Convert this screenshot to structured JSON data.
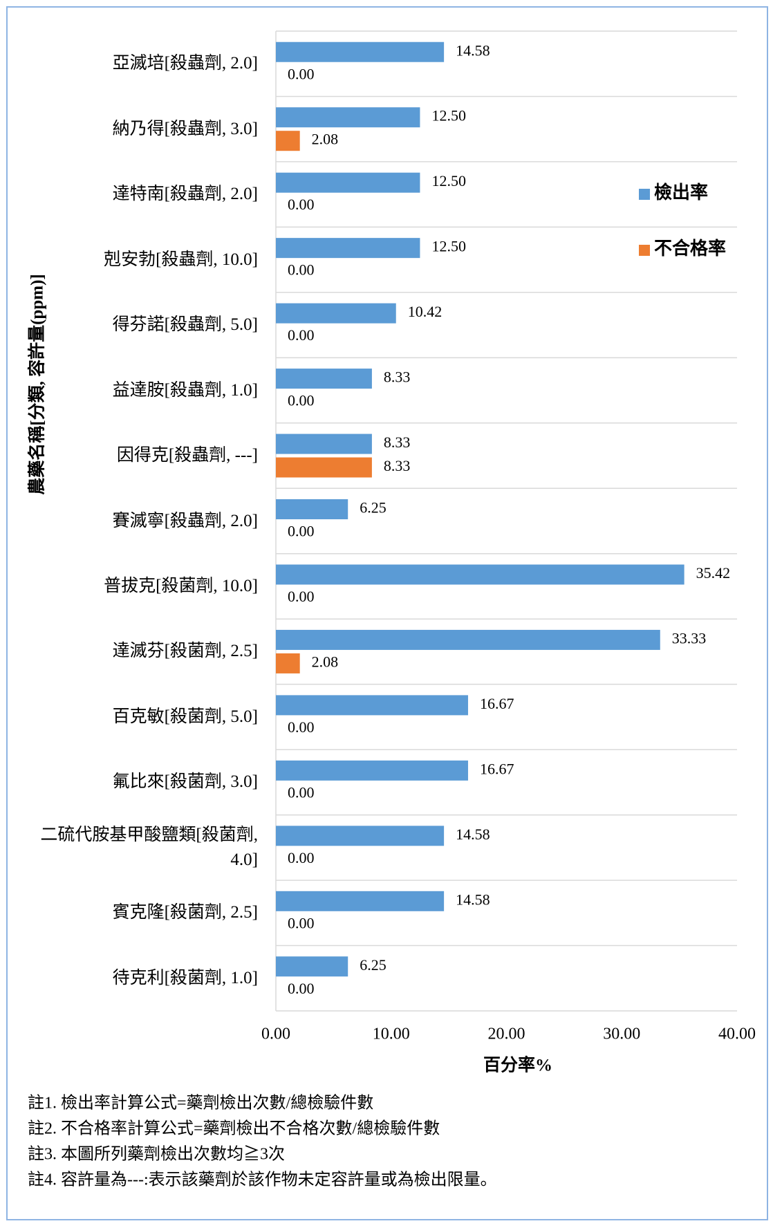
{
  "chart_data": {
    "type": "barh",
    "ylabel": "農藥名稱[分類, 容許量(ppm)]",
    "xlabel": "百分率%",
    "categories": [
      "亞滅培[殺蟲劑, 2.0]",
      "納乃得[殺蟲劑, 3.0]",
      "達特南[殺蟲劑, 2.0]",
      "剋安勃[殺蟲劑, 10.0]",
      "得芬諾[殺蟲劑, 5.0]",
      "益達胺[殺蟲劑, 1.0]",
      "因得克[殺蟲劑, ---]",
      "賽滅寧[殺蟲劑, 2.0]",
      "普拔克[殺菌劑, 10.0]",
      "達滅芬[殺菌劑, 2.5]",
      "百克敏[殺菌劑, 5.0]",
      "氟比來[殺菌劑, 3.0]",
      "二硫代胺基甲酸鹽類[殺菌劑, 4.0]",
      "賓克隆[殺菌劑, 2.5]",
      "待克利[殺菌劑, 1.0]"
    ],
    "series": [
      {
        "name": "檢出率",
        "color": "#5b9bd5",
        "values": [
          14.58,
          12.5,
          12.5,
          12.5,
          10.42,
          8.33,
          8.33,
          6.25,
          35.42,
          33.33,
          16.67,
          16.67,
          14.58,
          14.58,
          6.25
        ],
        "value_labels": [
          "14.58",
          "12.50",
          "12.50",
          "12.50",
          "10.42",
          "8.33",
          "8.33",
          "6.25",
          "35.42",
          "33.33",
          "16.67",
          "16.67",
          "14.58",
          "14.58",
          "6.25"
        ]
      },
      {
        "name": "不合格率",
        "color": "#ed7d31",
        "values": [
          0,
          2.08,
          0,
          0,
          0,
          0,
          8.33,
          0,
          0,
          2.08,
          0,
          0,
          0,
          0,
          0
        ],
        "value_labels": [
          "0.00",
          "2.08",
          "0.00",
          "0.00",
          "0.00",
          "0.00",
          "8.33",
          "0.00",
          "0.00",
          "2.08",
          "0.00",
          "0.00",
          "0.00",
          "0.00",
          "0.00"
        ]
      }
    ],
    "xlim": [
      0,
      40
    ],
    "xticks": [
      {
        "value": 0,
        "label": "0.00"
      },
      {
        "value": 10,
        "label": "10.00"
      },
      {
        "value": 20,
        "label": "20.00"
      },
      {
        "value": 30,
        "label": "30.00"
      },
      {
        "value": 40,
        "label": "40.00"
      }
    ],
    "legend": "right",
    "notes": [
      "註1. 檢出率計算公式=藥劑檢出次數/總檢驗件數",
      "註2. 不合格率計算公式=藥劑檢出不合格次數/總檢驗件數",
      "註3. 本圖所列藥劑檢出次數均≧3次",
      "註4. 容許量為---:表示該藥劑於該作物未定容許量或為檢出限量。"
    ]
  }
}
